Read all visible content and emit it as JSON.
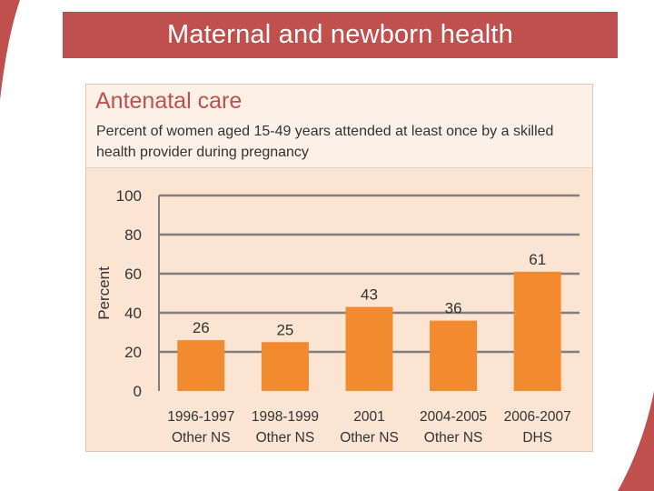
{
  "slide": {
    "title": "Maternal and newborn health"
  },
  "colors": {
    "title_bar": "#c0504d",
    "bar": "#f28a30",
    "panel_background": "#fbe4d2",
    "header_background": "#fdf0e6",
    "gridline": "#7f7f7f",
    "chart_title": "#c0504d"
  },
  "chart_data": {
    "type": "bar",
    "title": "Antenatal care",
    "subtitle": "Percent of women aged 15-49 years attended at least once by a skilled health provider during pregnancy",
    "ylabel": "Percent",
    "xlabel": "",
    "ylim": [
      0,
      100
    ],
    "yticks": [
      0,
      20,
      40,
      60,
      80,
      100
    ],
    "grid": true,
    "categories": [
      {
        "line1": "1996-1997",
        "line2": "Other NS"
      },
      {
        "line1": "1998-1999",
        "line2": "Other NS"
      },
      {
        "line1": "2001",
        "line2": "Other NS"
      },
      {
        "line1": "2004-2005",
        "line2": "Other NS"
      },
      {
        "line1": "2006-2007",
        "line2": "DHS"
      }
    ],
    "values": [
      26,
      25,
      43,
      36,
      61
    ]
  }
}
